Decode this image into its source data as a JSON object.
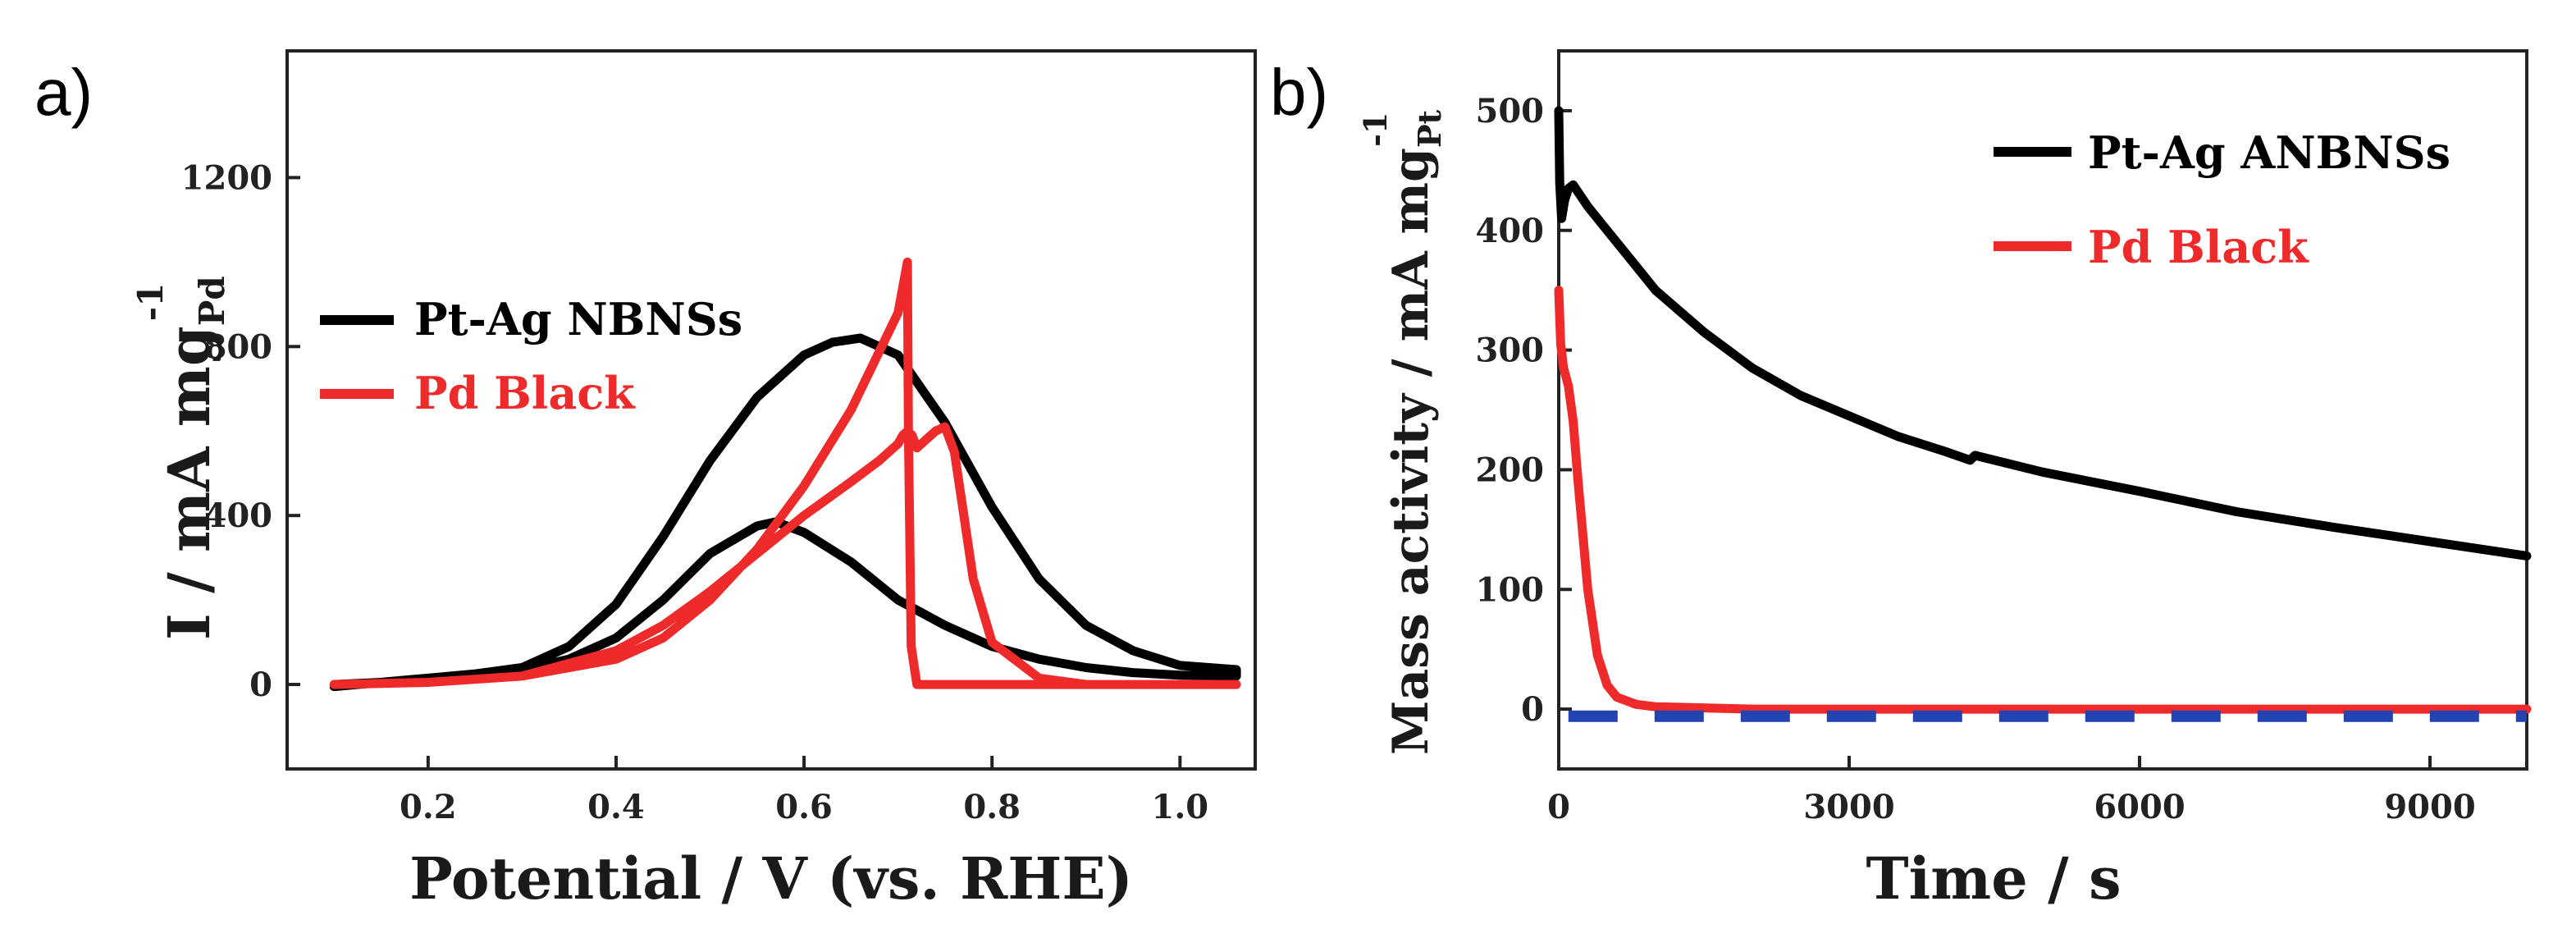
{
  "panel_a": {
    "label": "a)",
    "y_title": "I / mA mg",
    "y_title_sub": "Pd",
    "y_title_sup": "-1",
    "x_title": "Potential / V (vs. RHE)",
    "legend": [
      {
        "text": "Pt-Ag NBNSs",
        "color": "#000000"
      },
      {
        "text": "Pd Black",
        "color": "#ee2a2a"
      }
    ]
  },
  "panel_b": {
    "label": "b)",
    "y_title": "Mass activity / mA mg",
    "y_title_sub": "Pt",
    "y_title_sup": "-1",
    "x_title": "Time / s",
    "legend": [
      {
        "text": "Pt-Ag ANBNSs",
        "color": "#000000"
      },
      {
        "text": "Pd Black",
        "color": "#ee2a2a"
      }
    ]
  },
  "chart_data": [
    {
      "type": "line",
      "title": "",
      "xlabel": "Potential / V (vs. RHE)",
      "ylabel": "I / mA mg_Pd^-1",
      "xlim": [
        0.05,
        1.08
      ],
      "ylim": [
        -200,
        1500
      ],
      "xticks": [
        "0.2",
        "0.4",
        "0.6",
        "0.8",
        "1.0"
      ],
      "xtick_values": [
        0.2,
        0.4,
        0.6,
        0.8,
        1.0
      ],
      "yticks": [
        "0",
        "400",
        "800",
        "1200"
      ],
      "ytick_values": [
        0,
        400,
        800,
        1200
      ],
      "series": [
        {
          "name": "Pt-Ag NBNSs",
          "color": "#000000",
          "x": [
            0.1,
            0.2,
            0.3,
            0.35,
            0.4,
            0.45,
            0.5,
            0.55,
            0.6,
            0.63,
            0.66,
            0.7,
            0.75,
            0.8,
            0.85,
            0.9,
            0.95,
            1.0,
            1.06,
            1.06,
            1.0,
            0.95,
            0.9,
            0.85,
            0.8,
            0.75,
            0.7,
            0.65,
            0.6,
            0.57,
            0.55,
            0.5,
            0.45,
            0.4,
            0.35,
            0.3,
            0.2,
            0.1
          ],
          "y": [
            0,
            10,
            40,
            90,
            190,
            350,
            530,
            680,
            780,
            810,
            820,
            780,
            620,
            420,
            250,
            140,
            80,
            45,
            35,
            20,
            22,
            28,
            40,
            60,
            90,
            140,
            200,
            290,
            360,
            385,
            375,
            310,
            200,
            110,
            60,
            35,
            15,
            -5
          ]
        },
        {
          "name": "Pd Black",
          "color": "#ee2a2a",
          "x": [
            0.1,
            0.2,
            0.3,
            0.4,
            0.45,
            0.5,
            0.55,
            0.6,
            0.65,
            0.68,
            0.7,
            0.705,
            0.71,
            0.715,
            0.72,
            0.74,
            0.75,
            0.76,
            0.77,
            0.78,
            0.8,
            0.85,
            0.9,
            1.0,
            1.06,
            1.06,
            1.0,
            0.9,
            0.8,
            0.75,
            0.72,
            0.714,
            0.711,
            0.71,
            0.7,
            0.65,
            0.6,
            0.55,
            0.5,
            0.45,
            0.4,
            0.3,
            0.2,
            0.1
          ],
          "y": [
            0,
            5,
            20,
            80,
            140,
            220,
            310,
            400,
            480,
            530,
            570,
            590,
            600,
            590,
            560,
            600,
            610,
            550,
            400,
            250,
            100,
            15,
            0,
            0,
            0,
            0,
            0,
            0,
            0,
            0,
            0,
            90,
            600,
            1000,
            880,
            650,
            470,
            320,
            200,
            110,
            60,
            20,
            5,
            0
          ]
        }
      ]
    },
    {
      "type": "line",
      "title": "",
      "xlabel": "Time / s",
      "ylabel": "Mass activity / mA mg_Pt^-1",
      "xlim": [
        0,
        10000
      ],
      "ylim": [
        -50,
        550
      ],
      "xticks": [
        "0",
        "3000",
        "6000",
        "9000"
      ],
      "xtick_values": [
        0,
        3000,
        6000,
        9000
      ],
      "yticks": [
        "0",
        "100",
        "200",
        "300",
        "400",
        "500"
      ],
      "ytick_values": [
        0,
        100,
        200,
        300,
        400,
        500
      ],
      "series": [
        {
          "name": "Pt-Ag ANBNSs",
          "color": "#000000",
          "x": [
            0,
            10,
            30,
            60,
            100,
            150,
            200,
            300,
            500,
            700,
            1000,
            1500,
            2000,
            2500,
            3000,
            3500,
            4000,
            4250,
            4300,
            5000,
            6000,
            7000,
            8000,
            9000,
            10000
          ],
          "y": [
            500,
            440,
            410,
            425,
            435,
            438,
            432,
            420,
            400,
            380,
            350,
            315,
            285,
            262,
            245,
            228,
            215,
            208,
            212,
            198,
            182,
            165,
            152,
            140,
            128
          ]
        },
        {
          "name": "Pd Black",
          "color": "#ee2a2a",
          "x": [
            0,
            20,
            50,
            100,
            150,
            200,
            300,
            400,
            500,
            600,
            800,
            1000,
            1500,
            2000,
            3000,
            5000,
            7000,
            10000
          ],
          "y": [
            350,
            305,
            285,
            270,
            240,
            190,
            100,
            45,
            20,
            10,
            4,
            2,
            1,
            0,
            0,
            0,
            0,
            0
          ]
        },
        {
          "name": "baseline",
          "color": "#2343b0",
          "dashed": true,
          "x": [
            100,
            10000
          ],
          "y": [
            -6,
            -6
          ]
        }
      ]
    }
  ]
}
